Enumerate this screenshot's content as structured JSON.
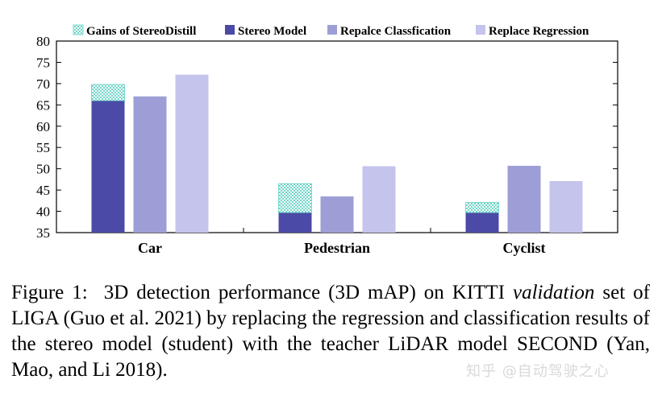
{
  "chart_data": {
    "type": "bar",
    "stacked_first_series": true,
    "categories": [
      "Car",
      "Pedestrian",
      "Cyclist"
    ],
    "series": [
      {
        "name": "Stereo Model",
        "values": [
          66,
          39.7,
          39.7
        ],
        "color": "#4b4aa6"
      },
      {
        "name": "Gains of StereoDistill",
        "values": [
          3.8,
          6.8,
          2.4
        ],
        "color": "#5fd3c3",
        "pattern": "dotted",
        "stacked_on": "Stereo Model"
      },
      {
        "name": "Repalce Classfication",
        "values": [
          67,
          43.5,
          50.7
        ],
        "color": "#9e9ed6"
      },
      {
        "name": "Replace Regression",
        "values": [
          72.1,
          50.6,
          47.1
        ],
        "color": "#c4c4ec"
      }
    ],
    "legend_order": [
      "Gains of StereoDistill",
      "Stereo Model",
      "Repalce Classfication",
      "Replace Regression"
    ],
    "legend_position": "top",
    "ylim": [
      35,
      80
    ],
    "yticks": [
      35,
      40,
      45,
      50,
      55,
      60,
      65,
      70,
      75,
      80
    ],
    "grid": false,
    "xlabel": "",
    "ylabel": ""
  },
  "caption": {
    "label": "Figure 1:",
    "text_pre": " 3D detection performance (3D mAP) on KITTI ",
    "text_italic": "valida­tion",
    "text_post": " set of LIGA (Guo et al. 2021) by replacing the regression and classification results of the stereo model (student) with the teacher LiDAR model SECOND (Yan, Mao, and Li 2018)."
  },
  "watermark": "知乎 @自动驾驶之心"
}
